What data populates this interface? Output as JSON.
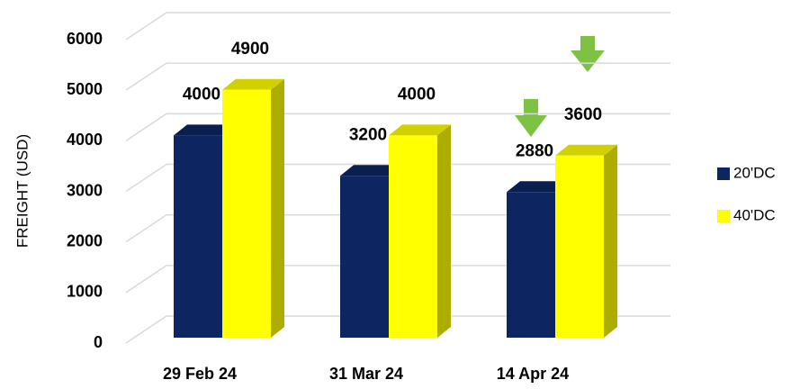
{
  "chart_data": {
    "type": "bar3d",
    "ylabel": "FREIGHT (USD)",
    "categories": [
      "29 Feb 24",
      "31 Mar 24",
      "14 Apr 24"
    ],
    "series": [
      {
        "name": "20'DC",
        "color": "#0d2561",
        "values": [
          4000,
          3200,
          2880
        ]
      },
      {
        "name": "40'DC",
        "color": "#ffff00",
        "values": [
          4900,
          4000,
          3600
        ]
      }
    ],
    "ylim": [
      0,
      6000
    ],
    "yticks": [
      0,
      1000,
      2000,
      3000,
      4000,
      5000,
      6000
    ],
    "grid": true,
    "legend": "right"
  }
}
